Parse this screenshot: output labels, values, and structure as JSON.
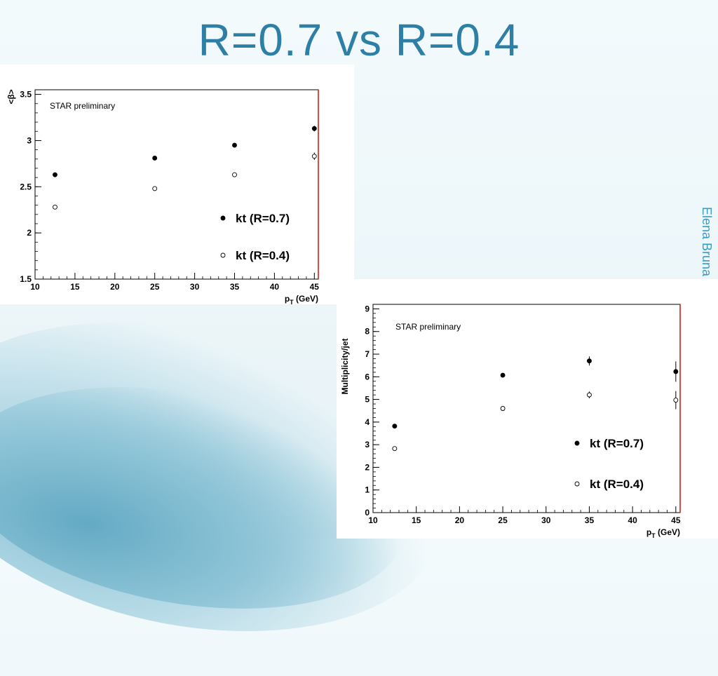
{
  "slide": {
    "title": "R=0.7 vs R=0.4",
    "author": "Elena Bruna"
  },
  "chart_data": [
    {
      "type": "scatter",
      "ylabel_glyph": "<β>",
      "xlabel": "p_T (GeV)",
      "xlabel_main": "p",
      "xlabel_sub": "T",
      "xlabel_unit": "(GeV)",
      "annotation": "STAR preliminary",
      "xlim": [
        10,
        45.5
      ],
      "ylim": [
        1.5,
        3.55
      ],
      "xticks": [
        10,
        15,
        20,
        25,
        30,
        35,
        40,
        45
      ],
      "yticks": [
        1.5,
        2,
        2.5,
        3,
        3.5
      ],
      "ytick_labels": [
        "1.5",
        "2",
        "2.5",
        "3",
        "3.5"
      ],
      "legend_position": "bottom-right",
      "series": [
        {
          "name": "kt (R=0.7)",
          "marker": "filled",
          "x": [
            12.5,
            25,
            35,
            45
          ],
          "y": [
            2.63,
            2.81,
            2.95,
            3.13
          ],
          "err": [
            0.01,
            0.01,
            0.01,
            0.03
          ]
        },
        {
          "name": "kt (R=0.4)",
          "marker": "open",
          "x": [
            12.5,
            25,
            35,
            45
          ],
          "y": [
            2.28,
            2.48,
            2.63,
            2.83
          ],
          "err": [
            0.01,
            0.01,
            0.01,
            0.04
          ]
        }
      ]
    },
    {
      "type": "scatter",
      "ylabel": "Multiplicity/jet",
      "xlabel": "p_T (GeV)",
      "xlabel_main": "p",
      "xlabel_sub": "T",
      "xlabel_unit": "(GeV)",
      "annotation": "STAR preliminary",
      "xlim": [
        10,
        45.5
      ],
      "ylim": [
        0,
        9.2
      ],
      "xticks": [
        10,
        15,
        20,
        25,
        30,
        35,
        40,
        45
      ],
      "yticks": [
        0,
        1,
        2,
        3,
        4,
        5,
        6,
        7,
        8,
        9
      ],
      "ytick_labels": [
        "0",
        "1",
        "2",
        "3",
        "4",
        "5",
        "6",
        "7",
        "8",
        "9"
      ],
      "legend_position": "bottom-right",
      "series": [
        {
          "name": "kt (R=0.7)",
          "marker": "filled",
          "x": [
            12.5,
            25,
            35,
            45
          ],
          "y": [
            3.82,
            6.07,
            6.7,
            6.23
          ],
          "err": [
            0.05,
            0.08,
            0.2,
            0.45
          ]
        },
        {
          "name": "kt (R=0.4)",
          "marker": "open",
          "x": [
            12.5,
            25,
            35,
            45
          ],
          "y": [
            2.83,
            4.6,
            5.2,
            4.97
          ],
          "err": [
            0.05,
            0.08,
            0.15,
            0.4
          ]
        }
      ]
    }
  ]
}
